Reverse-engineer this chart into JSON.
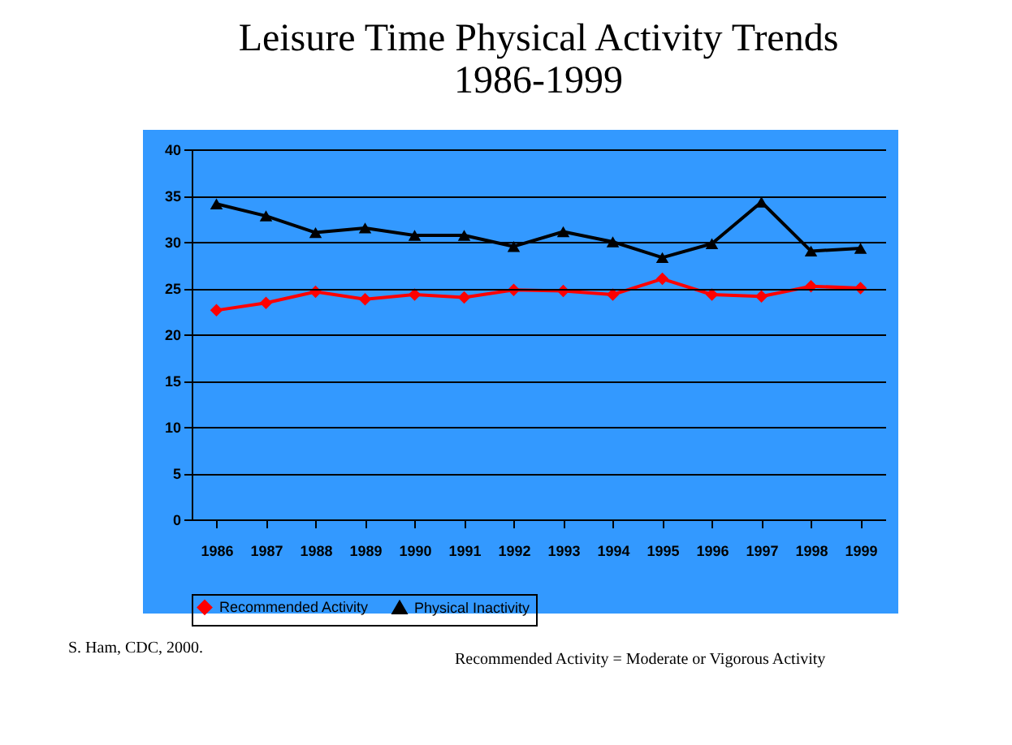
{
  "chart_data": {
    "type": "line",
    "title": "Leisure Time Physical Activity Trends 1986-1999",
    "categories": [
      "1986",
      "1987",
      "1988",
      "1989",
      "1990",
      "1991",
      "1992",
      "1993",
      "1994",
      "1995",
      "1996",
      "1997",
      "1998",
      "1999"
    ],
    "series": [
      {
        "name": "Recommended Activity",
        "color": "#ff0000",
        "marker": "diamond",
        "values": [
          22.6,
          23.4,
          24.6,
          23.8,
          24.3,
          24.0,
          24.8,
          24.7,
          24.3,
          26.0,
          24.3,
          24.1,
          25.2,
          25.0
        ]
      },
      {
        "name": "Physical Inactivity",
        "color": "#000000",
        "marker": "triangle",
        "values": [
          34.1,
          32.8,
          31.0,
          31.5,
          30.7,
          30.7,
          29.5,
          31.1,
          30.0,
          28.3,
          29.8,
          34.3,
          29.0,
          29.3
        ]
      }
    ],
    "ylim": [
      0,
      40
    ],
    "yticks": [
      0,
      5,
      10,
      15,
      20,
      25,
      30,
      35,
      40
    ],
    "grid": "y",
    "legend": "bottom",
    "line_style": "solid",
    "annotations": [
      "S. Ham, CDC, 2000.",
      "Recommended Activity = Moderate or Vigorous Activity"
    ]
  }
}
